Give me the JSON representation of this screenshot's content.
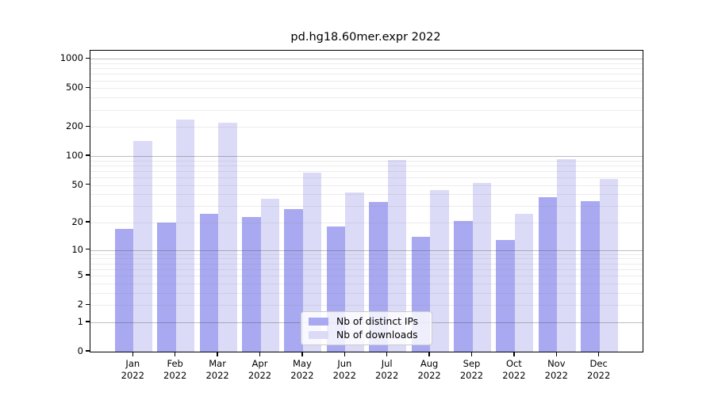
{
  "title": "pd.hg18.60mer.expr 2022",
  "chart_data": {
    "type": "bar",
    "title": "pd.hg18.60mer.expr 2022",
    "categories": [
      "Jan 2022",
      "Feb 2022",
      "Mar 2022",
      "Apr 2022",
      "May 2022",
      "Jun 2022",
      "Jul 2022",
      "Aug 2022",
      "Sep 2022",
      "Oct 2022",
      "Nov 2022",
      "Dec 2022"
    ],
    "month_labels": [
      "Jan",
      "Feb",
      "Mar",
      "Apr",
      "May",
      "Jun",
      "Jul",
      "Aug",
      "Sep",
      "Oct",
      "Nov",
      "Dec"
    ],
    "year_label": "2022",
    "series": [
      {
        "name": "Nb of distinct IPs",
        "color": "#a9a9f1",
        "values": [
          17,
          20,
          25,
          23,
          28,
          18,
          33,
          14,
          21,
          13,
          37,
          34
        ]
      },
      {
        "name": "Nb of downloads",
        "color": "#dbdbf7",
        "values": [
          144,
          238,
          220,
          36,
          67,
          42,
          91,
          44,
          53,
          25,
          93,
          58
        ]
      }
    ],
    "xlabel": "",
    "ylabel": "",
    "y_scale": "log1p",
    "ylim": [
      0,
      1215
    ],
    "y_ticks": [
      0,
      1,
      2,
      5,
      10,
      20,
      50,
      100,
      200,
      500,
      1000
    ],
    "y_major_grid": [
      1,
      10,
      100,
      1000
    ],
    "y_minor_grid": [
      2,
      3,
      4,
      5,
      6,
      7,
      8,
      9,
      20,
      30,
      40,
      50,
      60,
      70,
      80,
      90,
      200,
      300,
      400,
      500,
      600,
      700,
      800,
      900
    ],
    "grid": true,
    "legend_position": "lower center"
  }
}
